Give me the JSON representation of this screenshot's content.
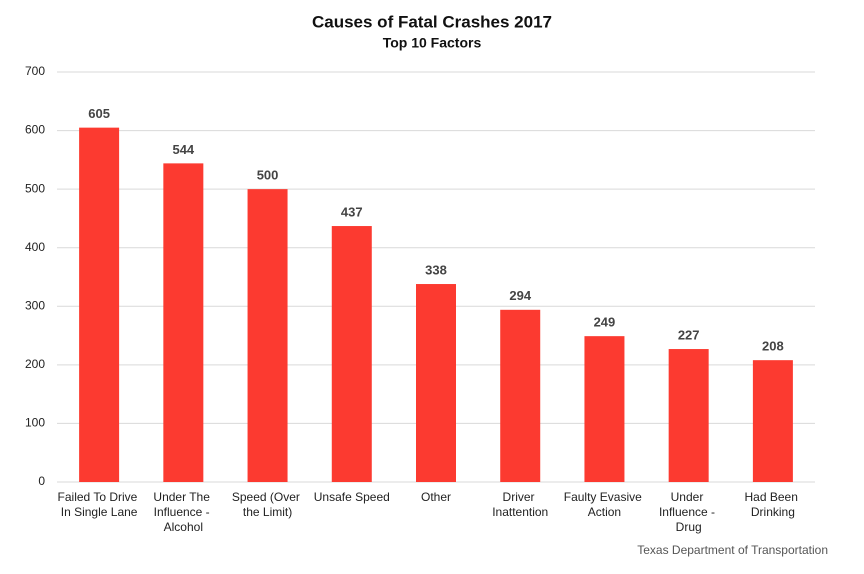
{
  "chart_data": {
    "type": "bar",
    "title": "Causes of Fatal Crashes 2017",
    "subtitle": "Top 10 Factors",
    "categories": [
      "Failed To Drive In Single Lane",
      "Under The Influence - Alcohol",
      "Speed (Over the Limit)",
      "Unsafe Speed",
      "Other",
      "Driver Inattention",
      "Faulty Evasive Action",
      "Under Influence - Drug",
      "Had Been Drinking"
    ],
    "values": [
      605,
      544,
      500,
      437,
      338,
      294,
      249,
      227,
      208
    ],
    "color": "#fc3a30",
    "ylim": [
      0,
      700
    ],
    "yticks": [
      0,
      100,
      200,
      300,
      400,
      500,
      600,
      700
    ],
    "grid": true,
    "source": "Texas Department of Transportation"
  }
}
